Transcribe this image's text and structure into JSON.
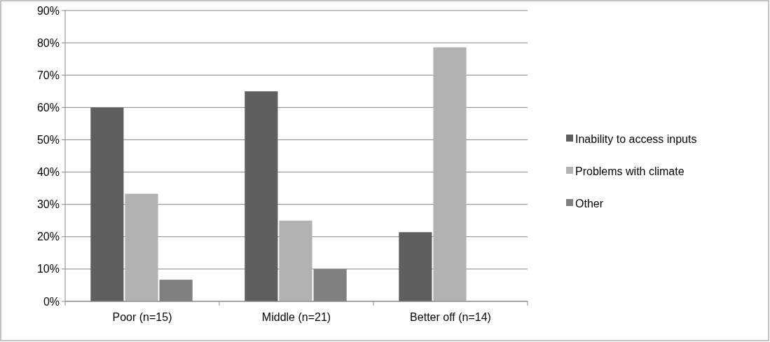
{
  "chart_data": {
    "type": "bar",
    "categories": [
      "Poor (n=15)",
      "Middle (n=21)",
      "Better off (n=14)"
    ],
    "series": [
      {
        "name": "Inability to access inputs",
        "color": "#5f5f5f",
        "values": [
          60,
          65,
          21.4
        ]
      },
      {
        "name": "Problems with climate",
        "color": "#b2b2b2",
        "values": [
          33.3,
          25,
          78.6
        ]
      },
      {
        "name": "Other",
        "color": "#808080",
        "values": [
          6.7,
          10,
          0
        ]
      }
    ],
    "ylim": [
      0,
      90
    ],
    "yticks": [
      {
        "value": 0,
        "label": "0%"
      },
      {
        "value": 10,
        "label": "10%"
      },
      {
        "value": 20,
        "label": "20%"
      },
      {
        "value": 30,
        "label": "30%"
      },
      {
        "value": 40,
        "label": "40%"
      },
      {
        "value": 50,
        "label": "50%"
      },
      {
        "value": 60,
        "label": "60%"
      },
      {
        "value": 70,
        "label": "70%"
      },
      {
        "value": 80,
        "label": "80%"
      },
      {
        "value": 90,
        "label": "90%"
      }
    ],
    "grid": "y",
    "legend": "right"
  }
}
